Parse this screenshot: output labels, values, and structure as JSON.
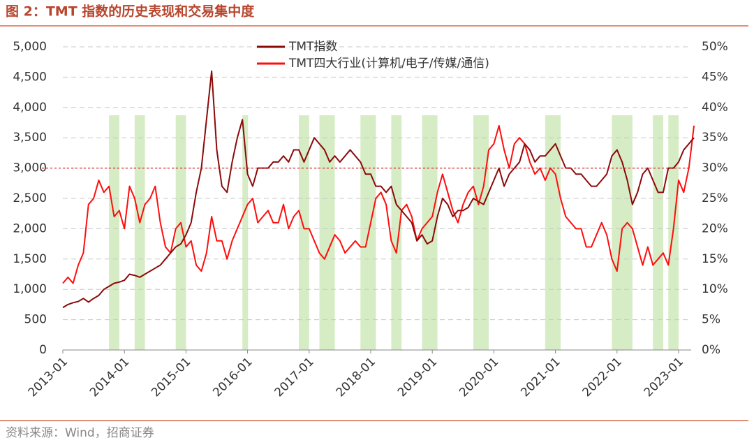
{
  "chart_data": {
    "type": "line",
    "title": "图 2：TMT 指数的历史表现和交易集中度",
    "source": "资料来源：Wind，招商证券",
    "x": [
      "2013-01",
      "2013-02",
      "2013-03",
      "2013-04",
      "2013-05",
      "2013-06",
      "2013-07",
      "2013-08",
      "2013-09",
      "2013-10",
      "2013-11",
      "2013-12",
      "2014-01",
      "2014-02",
      "2014-03",
      "2014-04",
      "2014-05",
      "2014-06",
      "2014-07",
      "2014-08",
      "2014-09",
      "2014-10",
      "2014-11",
      "2014-12",
      "2015-01",
      "2015-02",
      "2015-03",
      "2015-04",
      "2015-05",
      "2015-06",
      "2015-07",
      "2015-08",
      "2015-09",
      "2015-10",
      "2015-11",
      "2015-12",
      "2016-01",
      "2016-02",
      "2016-03",
      "2016-04",
      "2016-05",
      "2016-06",
      "2016-07",
      "2016-08",
      "2016-09",
      "2016-10",
      "2016-11",
      "2016-12",
      "2017-01",
      "2017-02",
      "2017-03",
      "2017-04",
      "2017-05",
      "2017-06",
      "2017-07",
      "2017-08",
      "2017-09",
      "2017-10",
      "2017-11",
      "2017-12",
      "2018-01",
      "2018-02",
      "2018-03",
      "2018-04",
      "2018-05",
      "2018-06",
      "2018-07",
      "2018-08",
      "2018-09",
      "2018-10",
      "2018-11",
      "2018-12",
      "2019-01",
      "2019-02",
      "2019-03",
      "2019-04",
      "2019-05",
      "2019-06",
      "2019-07",
      "2019-08",
      "2019-09",
      "2019-10",
      "2019-11",
      "2019-12",
      "2020-01",
      "2020-02",
      "2020-03",
      "2020-04",
      "2020-05",
      "2020-06",
      "2020-07",
      "2020-08",
      "2020-09",
      "2020-10",
      "2020-11",
      "2020-12",
      "2021-01",
      "2021-02",
      "2021-03",
      "2021-04",
      "2021-05",
      "2021-06",
      "2021-07",
      "2021-08",
      "2021-09",
      "2021-10",
      "2021-11",
      "2021-12",
      "2022-01",
      "2022-02",
      "2022-03",
      "2022-04",
      "2022-05",
      "2022-06",
      "2022-07",
      "2022-08",
      "2022-09",
      "2022-10",
      "2022-11",
      "2022-12",
      "2023-01",
      "2023-02",
      "2023-03",
      "2023-04"
    ],
    "xticks": [
      "2013-01",
      "2014-01",
      "2015-01",
      "2016-01",
      "2017-01",
      "2018-01",
      "2019-01",
      "2020-01",
      "2021-01",
      "2022-01",
      "2023-01"
    ],
    "series": [
      {
        "name": "TMT指数",
        "color": "#8b0a0a",
        "values": [
          700,
          750,
          780,
          800,
          850,
          790,
          850,
          900,
          1000,
          1050,
          1100,
          1120,
          1150,
          1250,
          1230,
          1200,
          1250,
          1300,
          1350,
          1400,
          1500,
          1600,
          1700,
          1750,
          1900,
          2100,
          2600,
          3000,
          3800,
          4600,
          3300,
          2700,
          2600,
          3100,
          3500,
          3800,
          2900,
          2700,
          3000,
          3000,
          3000,
          3100,
          3100,
          3200,
          3100,
          3300,
          3300,
          3100,
          3300,
          3500,
          3400,
          3300,
          3100,
          3200,
          3100,
          3200,
          3300,
          3200,
          3100,
          2900,
          2900,
          2700,
          2700,
          2600,
          2700,
          2400,
          2300,
          2200,
          2100,
          1800,
          1900,
          1750,
          1800,
          2200,
          2500,
          2400,
          2200,
          2300,
          2300,
          2350,
          2500,
          2450,
          2400,
          2600,
          2800,
          3000,
          2700,
          2900,
          3000,
          3100,
          3400,
          3300,
          3100,
          3200,
          3200,
          3300,
          3400,
          3200,
          3000,
          3000,
          2900,
          2900,
          2800,
          2700,
          2700,
          2800,
          2900,
          3200,
          3300,
          3100,
          2800,
          2400,
          2600,
          2900,
          3000,
          2800,
          2600,
          2600,
          3000,
          3000,
          3100,
          3300,
          3400,
          3500
        ]
      },
      {
        "name": "TMT四大行业(计算机/电子/传媒/通信)",
        "color": "#ff0d0d",
        "axis": "y2",
        "values": [
          11,
          12,
          11,
          14,
          16,
          24,
          25,
          28,
          26,
          27,
          22,
          23,
          20,
          27,
          25,
          21,
          24,
          25,
          27,
          21,
          17,
          16,
          20,
          21,
          17,
          18,
          14,
          13,
          16,
          22,
          18,
          18,
          15,
          18,
          20,
          22,
          24,
          25,
          21,
          22,
          23,
          21,
          21,
          24,
          20,
          22,
          23,
          20,
          20,
          18,
          16,
          15,
          17,
          19,
          18,
          16,
          17,
          18,
          17,
          17,
          21,
          25,
          26,
          24,
          18,
          16,
          23,
          24,
          22,
          18,
          20,
          21,
          22,
          26,
          29,
          26,
          23,
          21,
          24,
          26,
          27,
          24,
          27,
          33,
          34,
          37,
          33,
          30,
          34,
          35,
          34,
          31,
          29,
          30,
          28,
          30,
          29,
          25,
          22,
          21,
          20,
          20,
          17,
          17,
          19,
          21,
          19,
          15,
          13,
          20,
          21,
          20,
          17,
          14,
          17,
          14,
          15,
          16,
          14,
          20,
          28,
          26,
          30,
          37
        ]
      }
    ],
    "ylim": [
      0,
      5000
    ],
    "yticks": [
      0,
      500,
      {
        "value": 1000,
        "label": "1,000"
      },
      {
        "value": 1500,
        "label": "1,500"
      },
      {
        "value": 2000,
        "label": "2,000"
      },
      {
        "value": 2500,
        "label": "2,500"
      },
      {
        "value": 3000,
        "label": "3,000"
      },
      {
        "value": 3500,
        "label": "3,500"
      },
      {
        "value": 4000,
        "label": "4,000"
      },
      {
        "value": 4500,
        "label": "4,500"
      },
      {
        "value": 5000,
        "label": "5,000"
      }
    ],
    "y2lim": [
      0,
      50
    ],
    "y2ticks": [
      {
        "value": 0,
        "label": "0%"
      },
      {
        "value": 5,
        "label": "5%"
      },
      {
        "value": 10,
        "label": "10%"
      },
      {
        "value": 15,
        "label": "15%"
      },
      {
        "value": 20,
        "label": "20%"
      },
      {
        "value": 25,
        "label": "25%"
      },
      {
        "value": 30,
        "label": "30%"
      },
      {
        "value": 35,
        "label": "35%"
      },
      {
        "value": 40,
        "label": "40%"
      },
      {
        "value": 45,
        "label": "45%"
      },
      {
        "value": 50,
        "label": "50%"
      }
    ],
    "grid": true,
    "reference_line": {
      "value": 30,
      "axis": "y2",
      "color": "#e02020"
    },
    "shaded_periods": {
      "color": "#d6ecc4",
      "spans": [
        [
          "2013-10",
          "2013-12"
        ],
        [
          "2014-03",
          "2014-05"
        ],
        [
          "2014-11",
          "2015-01"
        ],
        [
          "2015-12",
          "2016-01"
        ],
        [
          "2016-11",
          "2017-01"
        ],
        [
          "2017-03",
          "2017-06"
        ],
        [
          "2017-11",
          "2018-02"
        ],
        [
          "2018-05",
          "2018-07"
        ],
        [
          "2018-11",
          "2019-02"
        ],
        [
          "2019-09",
          "2019-12"
        ],
        [
          "2020-11",
          "2021-02"
        ],
        [
          "2021-12",
          "2022-04"
        ],
        [
          "2022-08",
          "2022-10"
        ],
        [
          "2022-11",
          "2023-01"
        ]
      ]
    },
    "legend": "top-center"
  }
}
